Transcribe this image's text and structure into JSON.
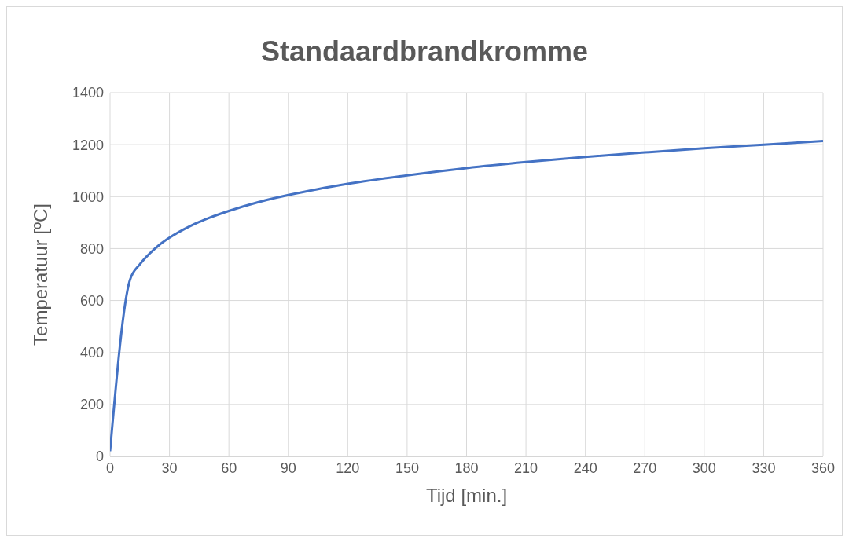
{
  "chart_data": {
    "type": "line",
    "title": "Standaardbrandkromme",
    "xlabel": "Tijd [min.]",
    "ylabel": "Temperatuur [ºC]",
    "x": [
      0,
      10,
      15,
      20,
      25,
      30,
      40,
      50,
      60,
      75,
      90,
      105,
      120,
      150,
      180,
      210,
      240,
      270,
      300,
      330,
      360
    ],
    "series": [
      {
        "color": "#4472c4",
        "values": [
          20,
          678,
          739,
          781,
          815,
          842,
          885,
          918,
          945,
          979,
          1006,
          1029,
          1049,
          1082,
          1110,
          1133,
          1153,
          1170,
          1186,
          1200,
          1214
        ]
      }
    ],
    "xlim": [
      0,
      360
    ],
    "xticks": [
      0,
      30,
      60,
      90,
      120,
      150,
      180,
      210,
      240,
      270,
      300,
      330,
      360
    ],
    "ylim": [
      0,
      1400
    ],
    "yticks": [
      0,
      200,
      400,
      600,
      800,
      1000,
      1200,
      1400
    ],
    "grid": true,
    "legend": false,
    "marker": "none",
    "line_style": "solid"
  }
}
